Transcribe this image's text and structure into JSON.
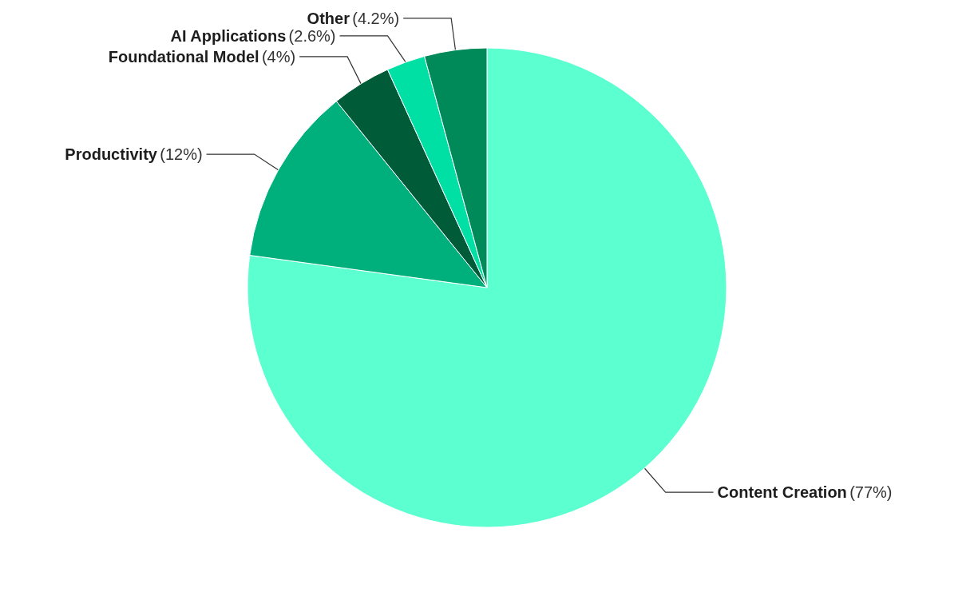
{
  "chart_data": {
    "type": "pie",
    "categories": [
      "Content Creation",
      "Productivity",
      "Foundational Model",
      "AI Applications",
      "Other"
    ],
    "values": [
      77,
      12,
      4,
      2.6,
      4.2
    ],
    "value_labels": [
      "(77%)",
      "(12%)",
      "(4%)",
      "(2.6%)",
      "(4.2%)"
    ],
    "colors": [
      "#5cffd0",
      "#00b07c",
      "#005c38",
      "#00e0a4",
      "#008a5a"
    ],
    "legend": false
  }
}
